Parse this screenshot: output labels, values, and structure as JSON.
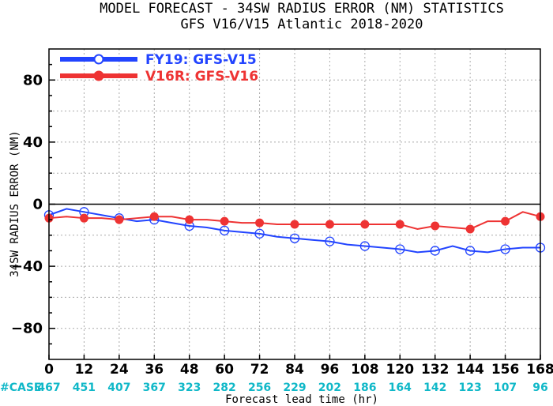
{
  "chart_data": {
    "type": "line",
    "title": "MODEL FORECAST - 34SW RADIUS ERROR (NM) STATISTICS",
    "subtitle": "GFS V16/V15 Atlantic 2018-2020",
    "xlabel": "Forecast lead time (hr)",
    "ylabel": "34SW RADIUS ERROR (NM)",
    "xlim": [
      0,
      168
    ],
    "ylim": [
      -100,
      100
    ],
    "x_ticks": [
      0,
      12,
      24,
      36,
      48,
      60,
      72,
      84,
      96,
      108,
      120,
      132,
      144,
      156,
      168
    ],
    "x_tick_labels": [
      "0",
      "12",
      "24",
      "36",
      "48",
      "60",
      "72",
      "84",
      "96",
      "108",
      "120",
      "132",
      "144",
      "156",
      "168"
    ],
    "y_ticks": [
      -80,
      -40,
      0,
      40,
      80
    ],
    "y_tick_labels": [
      "−80",
      "−40",
      "0",
      "40",
      "80"
    ],
    "grid": true,
    "legend_position": "top-left",
    "marker_every": 12,
    "series": [
      {
        "name": "FY19: GFS-V15",
        "color": "#2244ff",
        "marker": "open-circle",
        "x": [
          0,
          6,
          12,
          18,
          24,
          30,
          36,
          42,
          48,
          54,
          60,
          66,
          72,
          78,
          84,
          90,
          96,
          102,
          108,
          114,
          120,
          126,
          132,
          138,
          144,
          150,
          156,
          162,
          168
        ],
        "values": [
          -7,
          -3,
          -5,
          -7,
          -9,
          -11,
          -10,
          -12,
          -14,
          -15,
          -17,
          -18,
          -19,
          -21,
          -22,
          -23,
          -24,
          -26,
          -27,
          -28,
          -29,
          -31,
          -30,
          -27,
          -30,
          -31,
          -29,
          -28,
          -28
        ]
      },
      {
        "name": "V16R: GFS-V16",
        "color": "#ee3333",
        "marker": "filled-circle",
        "x": [
          0,
          6,
          12,
          18,
          24,
          30,
          36,
          42,
          48,
          54,
          60,
          66,
          72,
          78,
          84,
          90,
          96,
          102,
          108,
          114,
          120,
          126,
          132,
          138,
          144,
          150,
          156,
          162,
          168
        ],
        "values": [
          -9,
          -8,
          -9,
          -9,
          -10,
          -9,
          -8,
          -8,
          -10,
          -10,
          -11,
          -12,
          -12,
          -13,
          -13,
          -13,
          -13,
          -13,
          -13,
          -13,
          -13,
          -16,
          -14,
          -15,
          -16,
          -11,
          -11,
          -5,
          -8
        ]
      }
    ],
    "case_label": "#CASE",
    "case_counts": [
      "467",
      "451",
      "407",
      "367",
      "323",
      "282",
      "256",
      "229",
      "202",
      "186",
      "164",
      "142",
      "123",
      "107",
      "96"
    ],
    "case_color": "#10b8c8"
  }
}
